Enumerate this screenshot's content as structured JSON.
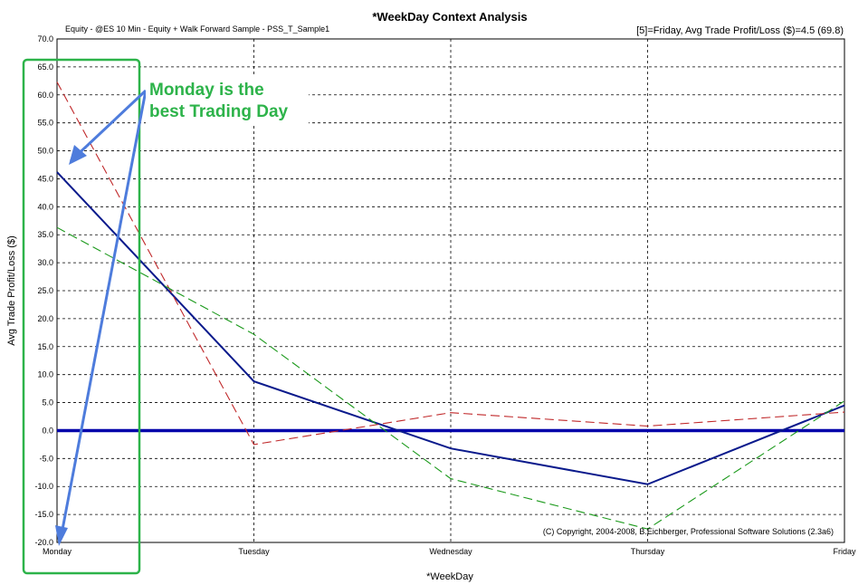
{
  "chart_data": {
    "type": "line",
    "title": "*WeekDay Context Analysis",
    "subtitle": "Equity - @ES 10 Min - Equity + Walk Forward Sample - PSS_T_Sample1",
    "info": "[5]=Friday,   Avg Trade Profit/Loss ($)=4.5 (69.8)",
    "xlabel": "*WeekDay",
    "ylabel": "Avg Trade Profit/Loss ($)",
    "categories": [
      "Monday",
      "Tuesday",
      "Wednesday",
      "Thursday",
      "Friday"
    ],
    "ylim": [
      -20,
      70
    ],
    "yticks": [
      "70.0",
      "65.0",
      "60.0",
      "55.0",
      "50.0",
      "45.0",
      "40.0",
      "35.0",
      "30.0",
      "25.0",
      "20.0",
      "15.0",
      "10.0",
      "5.0",
      "0.0",
      "-5.0",
      "-10.0",
      "-15.0",
      "-20.0"
    ],
    "grid": true,
    "series": [
      {
        "name": "Equity",
        "values": [
          46.2,
          8.8,
          -3.2,
          -9.6,
          4.5
        ],
        "color": "#0a1a8c",
        "style": "solid"
      },
      {
        "name": "Red dashed",
        "values": [
          62.3,
          -2.5,
          3.2,
          0.8,
          3.3
        ],
        "color": "#c0282a",
        "style": "dashed"
      },
      {
        "name": "Green dashed",
        "values": [
          36.3,
          17.2,
          -8.6,
          -17.6,
          5.3
        ],
        "color": "#1c9a1c",
        "style": "dashed"
      }
    ],
    "zero_line": 0,
    "annotation": "Monday is the best Trading Day",
    "annotation_lines": [
      "Monday is the",
      "best Trading Day"
    ],
    "annotation_color": "#2db34a",
    "arrow_color": "#4e7cdc",
    "copyright": "(C) Copyright, 2004-2008, B.Eichberger, Professional Software Solutions (2.3a6)"
  }
}
